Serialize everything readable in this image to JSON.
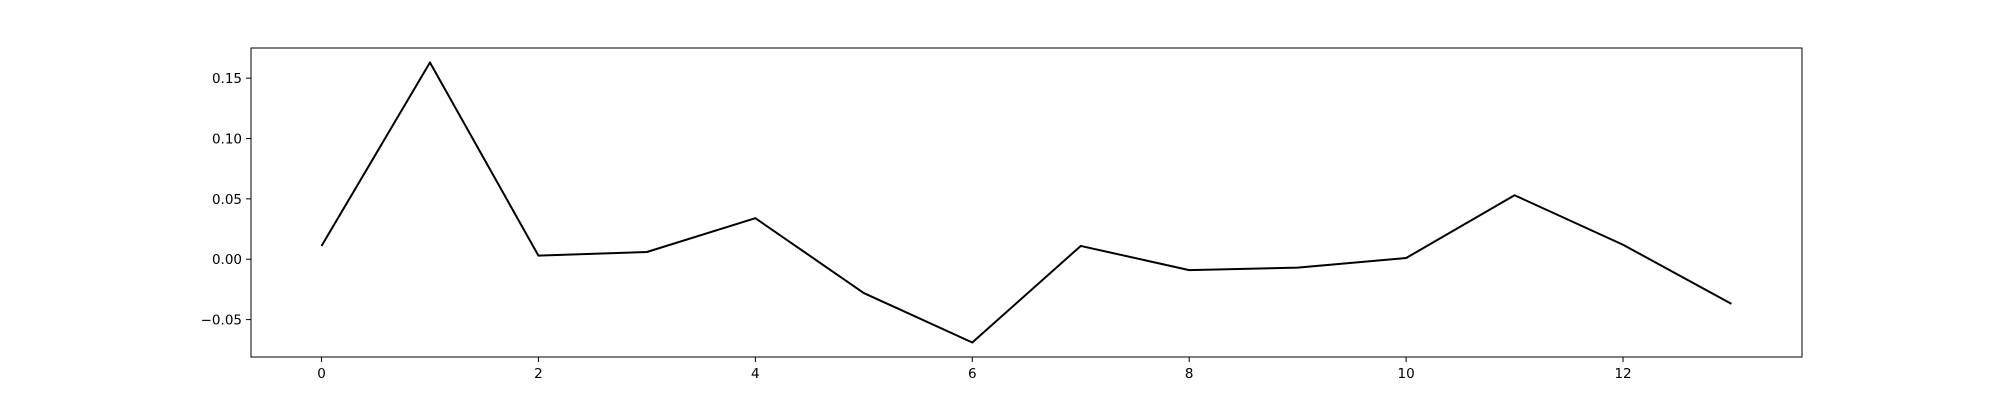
{
  "chart_data": {
    "type": "line",
    "title": "",
    "xlabel": "",
    "ylabel": "",
    "xlim": [
      -0.65,
      13.65
    ],
    "ylim": [
      -0.081,
      0.175
    ],
    "x_ticks": [
      0,
      2,
      4,
      6,
      8,
      10,
      12
    ],
    "x_tick_labels": [
      "0",
      "2",
      "4",
      "6",
      "8",
      "10",
      "12"
    ],
    "y_ticks": [
      -0.05,
      0.0,
      0.05,
      0.1,
      0.15
    ],
    "y_tick_labels": [
      "−0.05",
      "0.00",
      "0.05",
      "0.10",
      "0.15"
    ],
    "grid": false,
    "legend": "none",
    "series": [
      {
        "color": "#000000",
        "x": [
          0,
          1,
          2,
          3,
          4,
          5,
          6,
          7,
          8,
          9,
          10,
          11,
          12,
          13
        ],
        "y": [
          0.011,
          0.163,
          0.003,
          0.006,
          0.034,
          -0.028,
          -0.069,
          0.011,
          -0.009,
          -0.007,
          0.001,
          0.053,
          0.012,
          -0.037
        ]
      }
    ]
  }
}
